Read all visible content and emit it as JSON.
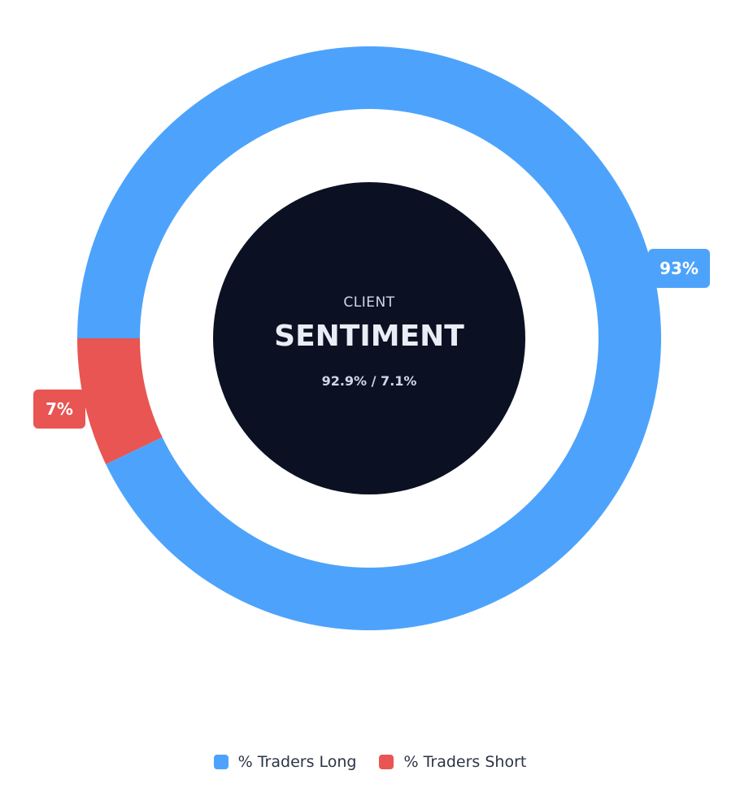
{
  "chart_data": {
    "type": "pie",
    "categories": [
      "% Traders Long",
      "% Traders Short"
    ],
    "values": [
      92.9,
      7.1
    ],
    "data_labels": [
      "93%",
      "7%"
    ],
    "colors": [
      "#4da3fb",
      "#e85552"
    ],
    "legend_position": "bottom"
  },
  "center": {
    "kicker": "CLIENT",
    "title": "SENTIMENT",
    "subtitle": "92.9% / 7.1%",
    "background": "#0b1122"
  },
  "legend": {
    "items": [
      {
        "label": "% Traders Long",
        "color": "#4da3fb"
      },
      {
        "label": "% Traders Short",
        "color": "#e85552"
      }
    ]
  }
}
